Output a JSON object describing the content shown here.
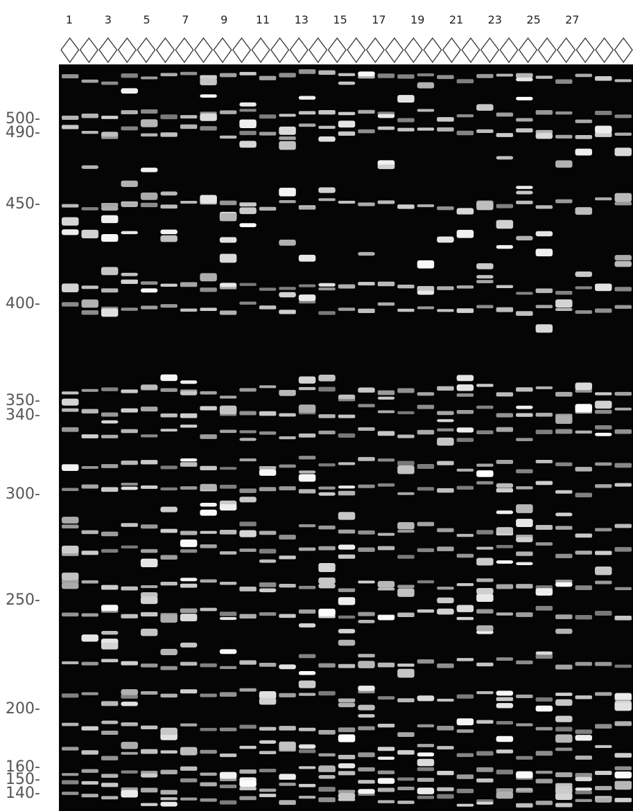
{
  "lanes": [
    "1",
    "3",
    "5",
    "7",
    "9",
    "11",
    "13",
    "15",
    "17",
    "19",
    "21",
    "23",
    "25",
    "27"
  ],
  "size_markers": [
    "500-",
    "490-",
    "450-",
    "400-",
    "350-",
    "340-",
    "300-",
    "250-",
    "200-",
    "160-",
    "150-",
    "140-"
  ]
}
